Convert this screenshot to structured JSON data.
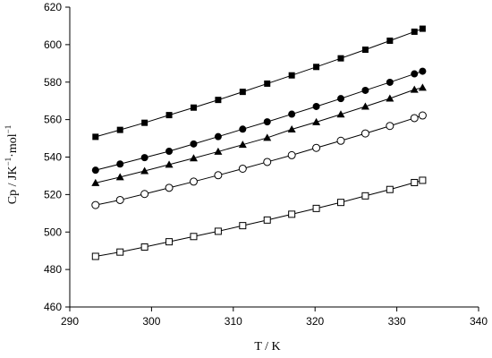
{
  "chart_data": {
    "type": "scatter",
    "title": "",
    "xlabel": "T / K",
    "ylabel": "Cp / J·K⁻¹·mol⁻¹",
    "ylabel_parts": {
      "a": "Cp / J",
      "b": "K",
      "b_sup": "−1",
      "c": "·mol",
      "c_sup": "−1"
    },
    "xlim": [
      290,
      340
    ],
    "ylim": [
      460,
      620
    ],
    "xticks": [
      290,
      300,
      310,
      320,
      330,
      340
    ],
    "yticks": [
      460,
      480,
      500,
      520,
      540,
      560,
      580,
      600,
      620
    ],
    "grid": false,
    "legend": "none",
    "x": [
      293.15,
      296.15,
      299.15,
      302.15,
      305.15,
      308.15,
      311.15,
      314.15,
      317.15,
      320.15,
      323.15,
      326.15,
      329.15,
      332.15,
      333.15
    ],
    "series": [
      {
        "marker": "filled-square",
        "values": [
          550.8,
          554.5,
          558.3,
          562.4,
          566.4,
          570.5,
          574.8,
          579.2,
          583.6,
          588.1,
          592.7,
          597.3,
          602.1,
          606.9,
          608.5
        ]
      },
      {
        "marker": "filled-circle",
        "values": [
          533.0,
          536.3,
          539.7,
          543.1,
          547.0,
          550.9,
          554.9,
          558.8,
          562.9,
          567.0,
          571.2,
          575.6,
          579.9,
          584.4,
          585.8
        ]
      },
      {
        "marker": "filled-triangle",
        "values": [
          526.2,
          529.3,
          532.6,
          536.0,
          539.4,
          542.9,
          546.6,
          550.3,
          554.8,
          558.7,
          562.8,
          567.0,
          571.3,
          576.0,
          577.1
        ]
      },
      {
        "marker": "open-circle",
        "values": [
          514.4,
          517.1,
          520.3,
          523.6,
          526.9,
          530.3,
          533.8,
          537.4,
          541.0,
          544.9,
          548.7,
          552.6,
          556.6,
          560.8,
          562.2
        ]
      },
      {
        "marker": "open-square",
        "values": [
          487.0,
          489.3,
          492.0,
          494.8,
          497.6,
          500.4,
          503.4,
          506.4,
          509.5,
          512.6,
          515.8,
          519.3,
          522.7,
          526.4,
          527.6
        ]
      }
    ]
  }
}
